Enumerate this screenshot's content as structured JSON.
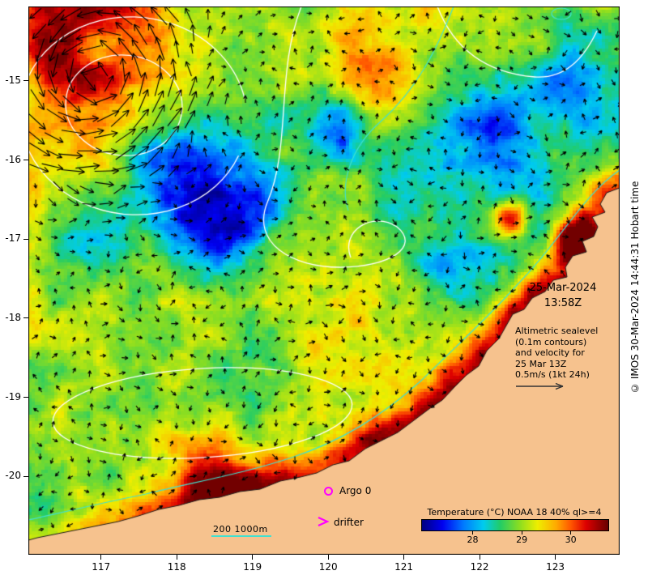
{
  "map": {
    "extent": {
      "west": 116.04,
      "east": 123.85,
      "north": -14.06,
      "south": -20.99
    },
    "lon_tick_labels": [
      "117",
      "118",
      "119",
      "120",
      "121",
      "122",
      "123"
    ],
    "lat_tick_labels": [
      "-15",
      "-16",
      "-17",
      "-18",
      "-19",
      "-20"
    ],
    "land_color": "#f6c28e",
    "sealevel_contour_color": "#ffffff",
    "bathymetry_contour_color": "#40e0d0",
    "current_arrow_color": "#000000"
  },
  "annotations": {
    "datetime": "25-Mar-2024\n13:58Z",
    "altimetric": "Altimetric sealevel\n(0.1m contours)\nand velocity for\n25 Mar 13Z\n0.5m/s (1kt 24h)",
    "copyright": "© IMOS 30-Mar-2024 14:44:31 Hobart time"
  },
  "legend": {
    "argo_label": "Argo 0",
    "drifter_label": "drifter",
    "marker_color": "#ff00ff",
    "scalebar_label": "200  1000m"
  },
  "colorbar": {
    "title": "Temperature (°C) NOAA 18 40% ql>=4",
    "tick_labels": [
      "28",
      "29",
      "30"
    ],
    "tick_values": [
      28,
      29,
      30
    ],
    "range": [
      26.95,
      30.75
    ],
    "palette": [
      [
        0.0,
        "#000080"
      ],
      [
        0.11,
        "#0000f0"
      ],
      [
        0.22,
        "#0077ff"
      ],
      [
        0.33,
        "#00ccee"
      ],
      [
        0.42,
        "#22cc66"
      ],
      [
        0.52,
        "#88dd22"
      ],
      [
        0.62,
        "#eeee00"
      ],
      [
        0.72,
        "#ffaa00"
      ],
      [
        0.8,
        "#ff5500"
      ],
      [
        0.88,
        "#dd0000"
      ],
      [
        1.0,
        "#660000"
      ]
    ]
  }
}
